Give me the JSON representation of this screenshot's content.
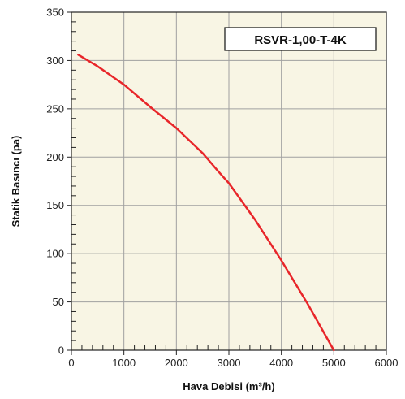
{
  "chart_data": {
    "type": "line",
    "title": "",
    "xlabel": "Hava Debisi (m³/h)",
    "ylabel": "Statik Basıncı (pa)",
    "xlim": [
      0,
      6000
    ],
    "ylim": [
      0,
      350
    ],
    "x_ticks": [
      0,
      1000,
      2000,
      3000,
      4000,
      5000,
      6000
    ],
    "y_ticks": [
      0,
      50,
      100,
      150,
      200,
      250,
      300,
      350
    ],
    "x_tick_labels": [
      "0",
      "1000",
      "2000",
      "3000",
      "4000",
      "5000",
      "6000"
    ],
    "y_tick_labels": [
      "0",
      "50",
      "100",
      "150",
      "200",
      "250",
      "300",
      "350"
    ],
    "grid": true,
    "plot_background": "#f8f5e4",
    "series": [
      {
        "name": "RSVR-1,00-T-4K",
        "color": "#e8262a",
        "x": [
          130,
          500,
          1000,
          1500,
          2000,
          2500,
          2800,
          3000,
          3500,
          4000,
          4500,
          5000
        ],
        "y": [
          306,
          294,
          275,
          252,
          230,
          204,
          185,
          173,
          135,
          93,
          48,
          0
        ]
      }
    ],
    "legend": {
      "position": "top-right",
      "label": "RSVR-1,00-T-4K"
    }
  }
}
